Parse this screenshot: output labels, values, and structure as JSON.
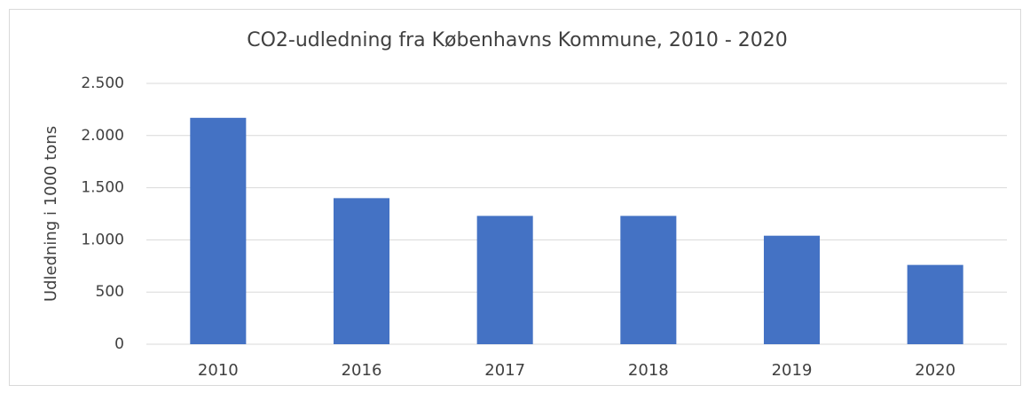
{
  "chart_data": {
    "type": "bar",
    "title": "CO2-udledning fra Københavns Kommune, 2010 - 2020",
    "y_label": "Udledning i 1000 tons",
    "categories": [
      "2010",
      "2016",
      "2017",
      "2018",
      "2019",
      "2020"
    ],
    "values": [
      2170,
      1400,
      1230,
      1230,
      1040,
      760
    ],
    "color": "#4472c4",
    "ylim": [
      0,
      2500
    ],
    "yticks": [
      0,
      500,
      {
        "value": 1000,
        "label": "1.000"
      },
      {
        "value": 1500,
        "label": "1.500"
      },
      {
        "value": 2000,
        "label": "2.000"
      },
      {
        "value": 2500,
        "label": "2.500"
      }
    ],
    "grid": true
  }
}
